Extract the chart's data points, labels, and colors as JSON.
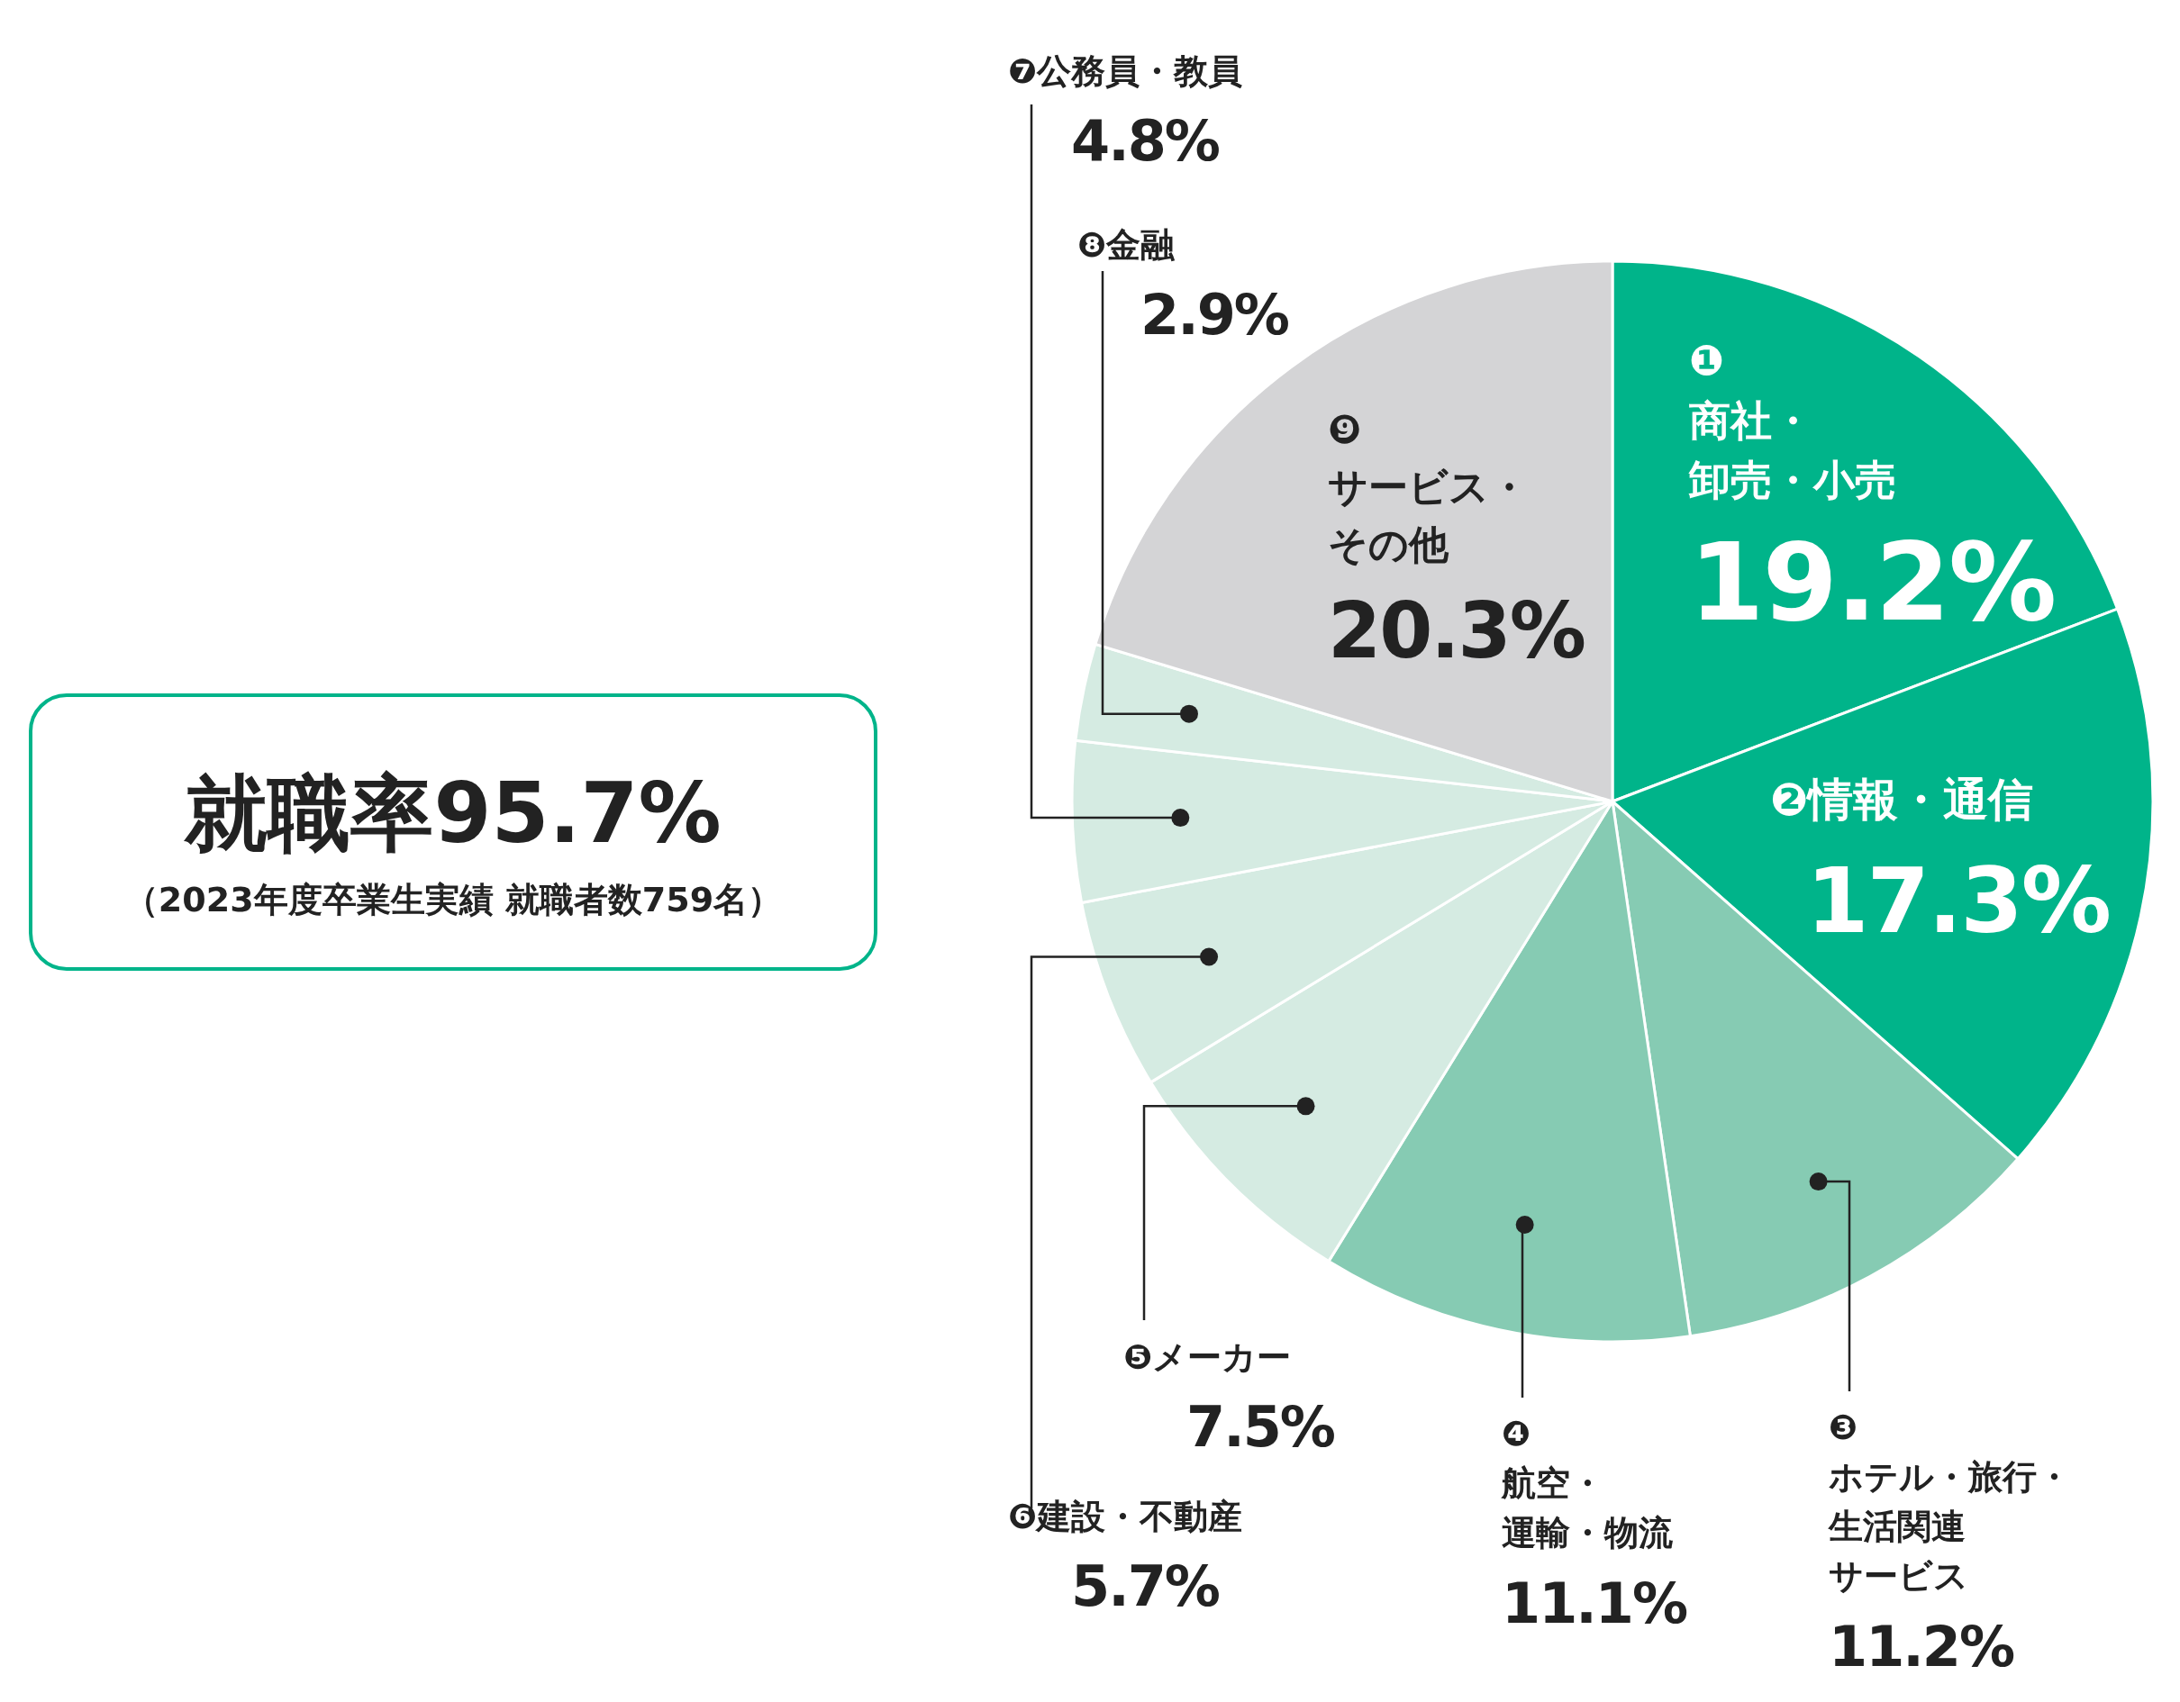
{
  "chart_data": {
    "type": "pie",
    "categories": [
      "❶商社・卸売・小売",
      "❷情報・通信",
      "❸ホテル・旅行・生活関連サービス",
      "❹航空・運輸・物流",
      "❺メーカー",
      "❻建設・不動産",
      "❼公務員・教員",
      "❽金融",
      "❾サービス・その他"
    ],
    "values": [
      19.2,
      17.3,
      11.2,
      11.1,
      7.5,
      5.7,
      4.8,
      2.9,
      20.3
    ],
    "colors": [
      "#00b48a",
      "#00b48a",
      "#86cbb3",
      "#86cbb3",
      "#d5ebe2",
      "#d5ebe2",
      "#d5ebe2",
      "#d5ebe2",
      "#d4d4d6"
    ],
    "value_labels": [
      "19.2%",
      "17.3%",
      "11.2%",
      "11.1%",
      "7.5%",
      "5.7%",
      "4.8%",
      "2.9%",
      "20.3%"
    ],
    "annotations": [
      "就職率95.7%",
      "（2023年度卒業生実績 就職者数759名）"
    ]
  }
}
